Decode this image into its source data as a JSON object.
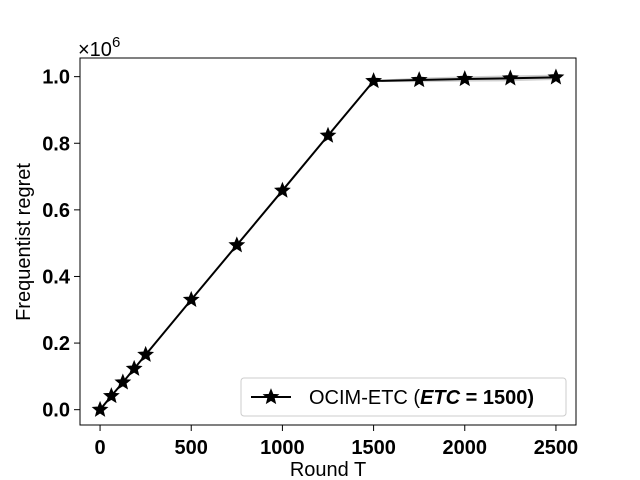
{
  "chart_data": {
    "type": "line",
    "xlabel": "Round T",
    "ylabel": "Frequentist regret",
    "offset_text": "×10",
    "offset_exp": "6",
    "xlim": [
      -110,
      2610
    ],
    "ylim": [
      -0.046,
      1.056
    ],
    "x_ticks": [
      0,
      500,
      1000,
      1500,
      2000,
      2500
    ],
    "x_tick_labels": [
      "0",
      "500",
      "1000",
      "1500",
      "2000",
      "2500"
    ],
    "y_ticks": [
      0.0,
      0.2,
      0.4,
      0.6,
      0.8,
      1.0
    ],
    "y_tick_labels": [
      "0.0",
      "0.2",
      "0.4",
      "0.6",
      "0.8",
      "1.0"
    ],
    "grid": false,
    "legend_position": "lower-right",
    "series": [
      {
        "name": "OCIM-ETC (ETC = 1500)",
        "legend_prefix": "OCIM-ETC (",
        "legend_emph": "ETC",
        "legend_suffix": " = 1500)",
        "color": "#000000",
        "marker": "star",
        "x": [
          0,
          62,
          125,
          187,
          250,
          500,
          750,
          1000,
          1250,
          1500,
          1750,
          2000,
          2250,
          2500
        ],
        "y": [
          0.0,
          0.041,
          0.082,
          0.123,
          0.165,
          0.33,
          0.494,
          0.658,
          0.823,
          0.987,
          0.99,
          0.993,
          0.995,
          0.998
        ],
        "band_upper": [
          0.0,
          0.042,
          0.083,
          0.124,
          0.166,
          0.331,
          0.495,
          0.66,
          0.825,
          0.99,
          0.997,
          1.001,
          1.004,
          1.006
        ],
        "band_lower": [
          0.0,
          0.04,
          0.081,
          0.122,
          0.164,
          0.329,
          0.493,
          0.656,
          0.821,
          0.984,
          0.983,
          0.985,
          0.986,
          0.99
        ]
      }
    ]
  }
}
